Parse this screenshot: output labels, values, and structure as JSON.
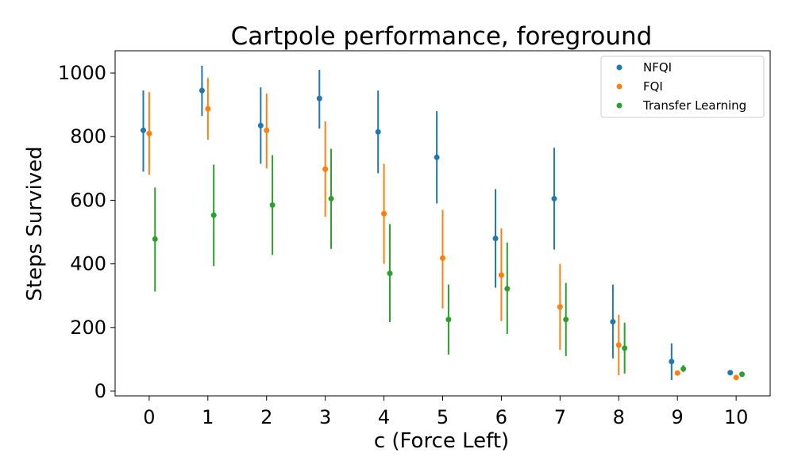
{
  "chart_data": {
    "type": "scatter",
    "title": "Cartpole performance, foreground",
    "xlabel": "c (Force Left)",
    "ylabel": "Steps Survived",
    "x": [
      0,
      1,
      2,
      3,
      4,
      5,
      6,
      7,
      8,
      9,
      10
    ],
    "xticks": [
      "0",
      "1",
      "2",
      "3",
      "4",
      "5",
      "6",
      "7",
      "8",
      "9",
      "10"
    ],
    "yticks": [
      "0",
      "200",
      "400",
      "600",
      "800",
      "1000"
    ],
    "ylim": [
      -15,
      1070
    ],
    "xlim": [
      -0.58,
      10.58
    ],
    "legend_position": "top-right",
    "grid": false,
    "series": [
      {
        "name": "NFQI",
        "color": "#1f77b4",
        "values": [
          820,
          945,
          835,
          920,
          815,
          735,
          480,
          605,
          218,
          93,
          58
        ],
        "err_low": [
          690,
          865,
          715,
          825,
          685,
          590,
          325,
          445,
          103,
          35,
          55
        ],
        "err_high": [
          945,
          1023,
          955,
          1010,
          945,
          880,
          635,
          765,
          335,
          150,
          60
        ]
      },
      {
        "name": "FQI",
        "color": "#ff7f0e",
        "values": [
          810,
          888,
          820,
          698,
          558,
          418,
          365,
          265,
          145,
          57,
          43
        ],
        "err_low": [
          680,
          790,
          700,
          548,
          400,
          260,
          220,
          130,
          50,
          52,
          38
        ],
        "err_high": [
          940,
          985,
          935,
          848,
          715,
          570,
          512,
          400,
          240,
          62,
          48
        ]
      },
      {
        "name": "Transfer Learning",
        "color": "#2ca02c",
        "values": [
          478,
          553,
          585,
          605,
          370,
          225,
          322,
          225,
          135,
          70,
          53
        ],
        "err_low": [
          313,
          393,
          428,
          447,
          217,
          115,
          180,
          110,
          55,
          60,
          48
        ],
        "err_high": [
          640,
          712,
          742,
          762,
          525,
          335,
          467,
          340,
          215,
          82,
          58
        ]
      }
    ]
  }
}
